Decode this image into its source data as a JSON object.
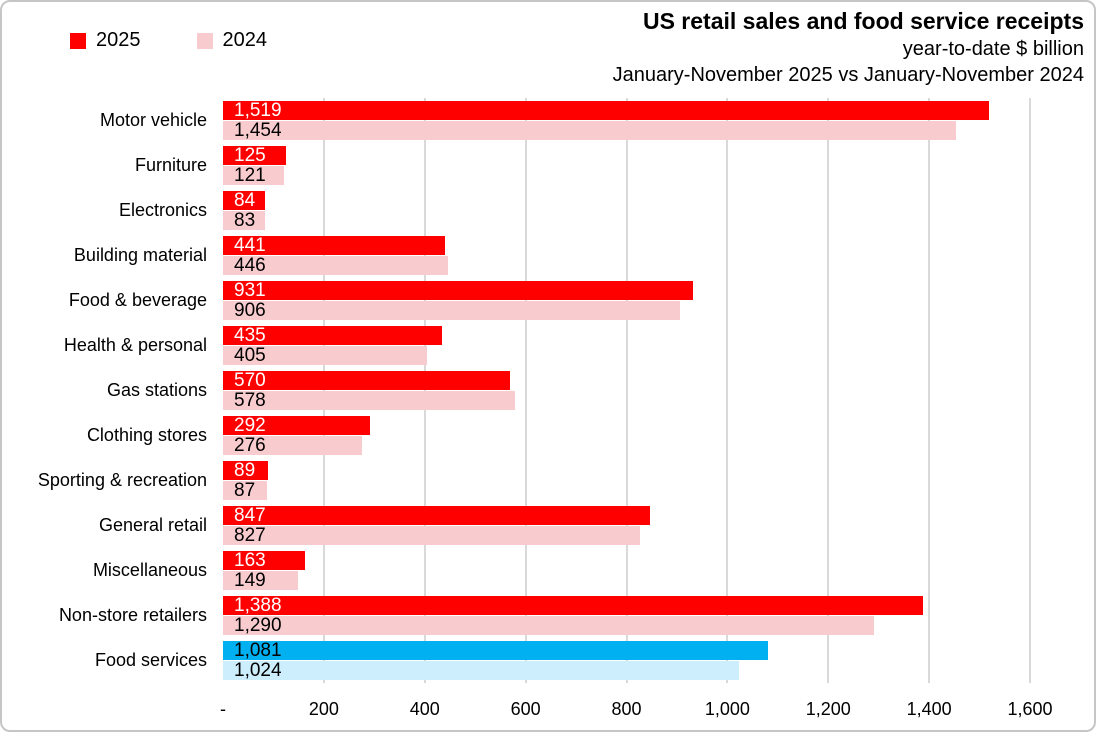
{
  "header": {
    "title": "US retail sales and food service receipts",
    "subtitle": "year-to-date $ billion",
    "comparison": "January-November 2025 vs January-November 2024"
  },
  "legend": [
    {
      "label": "2025",
      "color": "#FF0000"
    },
    {
      "label": "2024",
      "color": "#F8CCCF"
    }
  ],
  "chart_data": {
    "type": "bar",
    "orientation": "horizontal",
    "title": "US retail sales and food service receipts",
    "subtitle": "year-to-date $ billion",
    "period_comparison": "January-November 2025 vs January-November 2024",
    "unit": "$ billion",
    "xlim": [
      0,
      1600
    ],
    "grid": true,
    "gridline_values": [
      200,
      400,
      600,
      800,
      1000,
      1200,
      1400,
      1600
    ],
    "gridline_color": "#D9D9D9",
    "legend_position": "top-left",
    "ticks": [
      {
        "value": 0,
        "label": "-"
      },
      {
        "value": 200,
        "label": "200"
      },
      {
        "value": 400,
        "label": "400"
      },
      {
        "value": 600,
        "label": "600"
      },
      {
        "value": 800,
        "label": "800"
      },
      {
        "value": 1000,
        "label": "1,000"
      },
      {
        "value": 1200,
        "label": "1,200"
      },
      {
        "value": 1400,
        "label": "1,400"
      },
      {
        "value": 1600,
        "label": "1,600"
      }
    ],
    "categories": [
      "Motor vehicle",
      "Furniture",
      "Electronics",
      "Building material",
      "Food & beverage",
      "Health & personal",
      "Gas stations",
      "Clothing stores",
      "Sporting & recreation",
      "General retail",
      "Miscellaneous",
      "Non-store retailers",
      "Food services"
    ],
    "series": [
      {
        "name": "2025",
        "color": "#FF0000",
        "highlight_color": "#00B0F0",
        "value_color": "#FFFFFF",
        "highlight_value_color": "#000000",
        "values": [
          1519,
          125,
          84,
          441,
          931,
          435,
          570,
          292,
          89,
          847,
          163,
          1388,
          1081
        ]
      },
      {
        "name": "2024",
        "color": "#F8CCCF",
        "highlight_color": "#CDEEFC",
        "value_color": "#000000",
        "highlight_value_color": "#000000",
        "values": [
          1454,
          121,
          83,
          446,
          906,
          405,
          578,
          276,
          87,
          827,
          149,
          1290,
          1024
        ]
      }
    ],
    "highlight_category": "Food services",
    "highlight_index": 12
  }
}
